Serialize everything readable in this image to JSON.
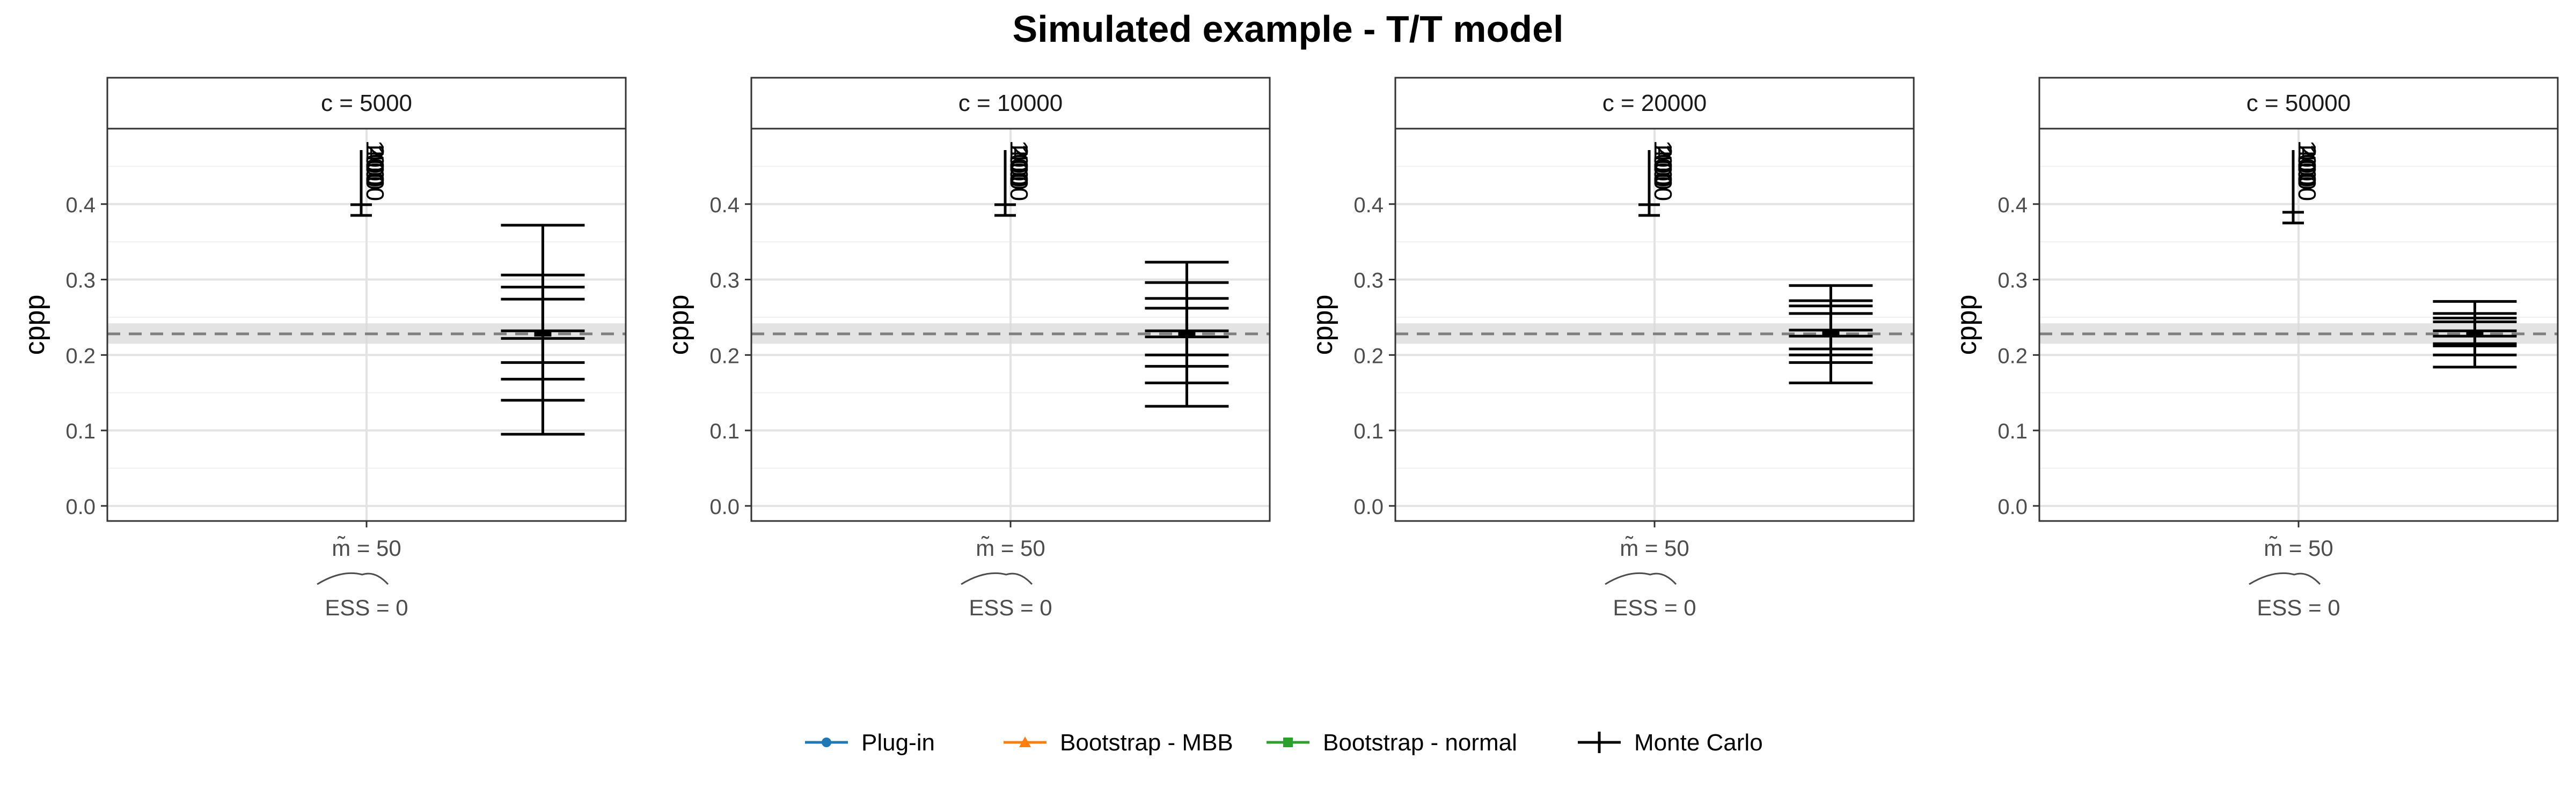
{
  "title": "Simulated example - T/T model",
  "ylabel": "cppp",
  "colors": {
    "plugin": "#1f77b4",
    "mbb": "#ff7f0e",
    "normal": "#2ca02c",
    "montecarlo": "#000000",
    "reference_line": "#7f7f7f",
    "reference_band": "#d9d9d9"
  },
  "legend": [
    {
      "label": "Plug-in",
      "marker": "circle",
      "color_key": "plugin"
    },
    {
      "label": "Bootstrap - MBB",
      "marker": "triangle",
      "color_key": "mbb"
    },
    {
      "label": "Bootstrap - normal",
      "marker": "square",
      "color_key": "normal"
    },
    {
      "label": "Monte Carlo",
      "marker": "cross",
      "color_key": "montecarlo"
    }
  ],
  "chart_data": {
    "type": "errorbar",
    "title": "Simulated example - T/T model",
    "ylabel": "cppp",
    "xlabel": "",
    "ylim": [
      -0.02,
      0.5
    ],
    "yticks": [
      0.0,
      0.1,
      0.2,
      0.3,
      0.4
    ],
    "grid": true,
    "legend_position": "bottom",
    "reference_line": {
      "y": 0.228,
      "band": [
        0.215,
        0.242
      ],
      "style": "dashed"
    },
    "panels": [
      {
        "strip": "c = 5000",
        "x_label": "m̃ = 50",
        "x_sublabel": "ESS = 0",
        "overflow_labels": [
          "100",
          "200",
          "400",
          "1000"
        ],
        "overflow_whisker_low": 0.385,
        "montecarlo_center": 0.228,
        "montecarlo_intervals": [
          {
            "lower": 0.095,
            "upper": 0.372
          },
          {
            "lower": 0.14,
            "upper": 0.306
          },
          {
            "lower": 0.168,
            "upper": 0.29
          },
          {
            "lower": 0.19,
            "upper": 0.274
          },
          {
            "lower": 0.222,
            "upper": 0.232
          }
        ]
      },
      {
        "strip": "c = 10000",
        "x_label": "m̃ = 50",
        "x_sublabel": "ESS = 0",
        "overflow_labels": [
          "100",
          "200",
          "400",
          "1000"
        ],
        "overflow_whisker_low": 0.385,
        "montecarlo_center": 0.228,
        "montecarlo_intervals": [
          {
            "lower": 0.132,
            "upper": 0.323
          },
          {
            "lower": 0.163,
            "upper": 0.296
          },
          {
            "lower": 0.185,
            "upper": 0.275
          },
          {
            "lower": 0.2,
            "upper": 0.262
          },
          {
            "lower": 0.224,
            "upper": 0.232
          }
        ]
      },
      {
        "strip": "c = 20000",
        "x_label": "m̃ = 50",
        "x_sublabel": "ESS = 0",
        "overflow_labels": [
          "100",
          "200",
          "400",
          "1000"
        ],
        "overflow_whisker_low": 0.385,
        "montecarlo_center": 0.228,
        "montecarlo_intervals": [
          {
            "lower": 0.163,
            "upper": 0.292
          },
          {
            "lower": 0.19,
            "upper": 0.272
          },
          {
            "lower": 0.2,
            "upper": 0.265
          },
          {
            "lower": 0.208,
            "upper": 0.255
          },
          {
            "lower": 0.225,
            "upper": 0.233
          }
        ]
      },
      {
        "strip": "c = 50000",
        "x_label": "m̃ = 50",
        "x_sublabel": "ESS = 0",
        "overflow_labels": [
          "100",
          "200",
          "400",
          "1000"
        ],
        "overflow_whisker_low": 0.375,
        "montecarlo_center": 0.228,
        "montecarlo_intervals": [
          {
            "lower": 0.184,
            "upper": 0.271
          },
          {
            "lower": 0.2,
            "upper": 0.255
          },
          {
            "lower": 0.212,
            "upper": 0.249
          },
          {
            "lower": 0.215,
            "upper": 0.244
          },
          {
            "lower": 0.225,
            "upper": 0.232
          }
        ]
      }
    ]
  }
}
